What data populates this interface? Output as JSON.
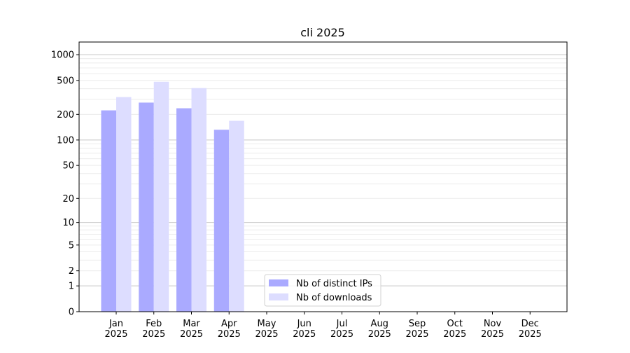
{
  "chart_data": {
    "type": "bar",
    "title": "cli 2025",
    "xlabel": "",
    "ylabel": "",
    "yscale": "log(1+y)",
    "ylim": [
      0,
      1300
    ],
    "yticks": [
      0,
      1,
      2,
      5,
      10,
      20,
      50,
      100,
      200,
      500,
      1000
    ],
    "grid": true,
    "legend_position": "lower-center",
    "categories": [
      "Jan\n2025",
      "Feb\n2025",
      "Mar\n2025",
      "Apr\n2025",
      "May\n2025",
      "Jun\n2025",
      "Jul\n2025",
      "Aug\n2025",
      "Sep\n2025",
      "Oct\n2025",
      "Nov\n2025",
      "Dec\n2025"
    ],
    "series": [
      {
        "name": "Nb of distinct IPs",
        "color": "#aaaaff",
        "values": [
          223,
          275,
          236,
          132,
          0,
          0,
          0,
          0,
          0,
          0,
          0,
          0
        ]
      },
      {
        "name": "Nb of downloads",
        "color": "#ddddff",
        "values": [
          319,
          482,
          407,
          168,
          0,
          0,
          0,
          0,
          0,
          0,
          0,
          0
        ]
      }
    ]
  }
}
